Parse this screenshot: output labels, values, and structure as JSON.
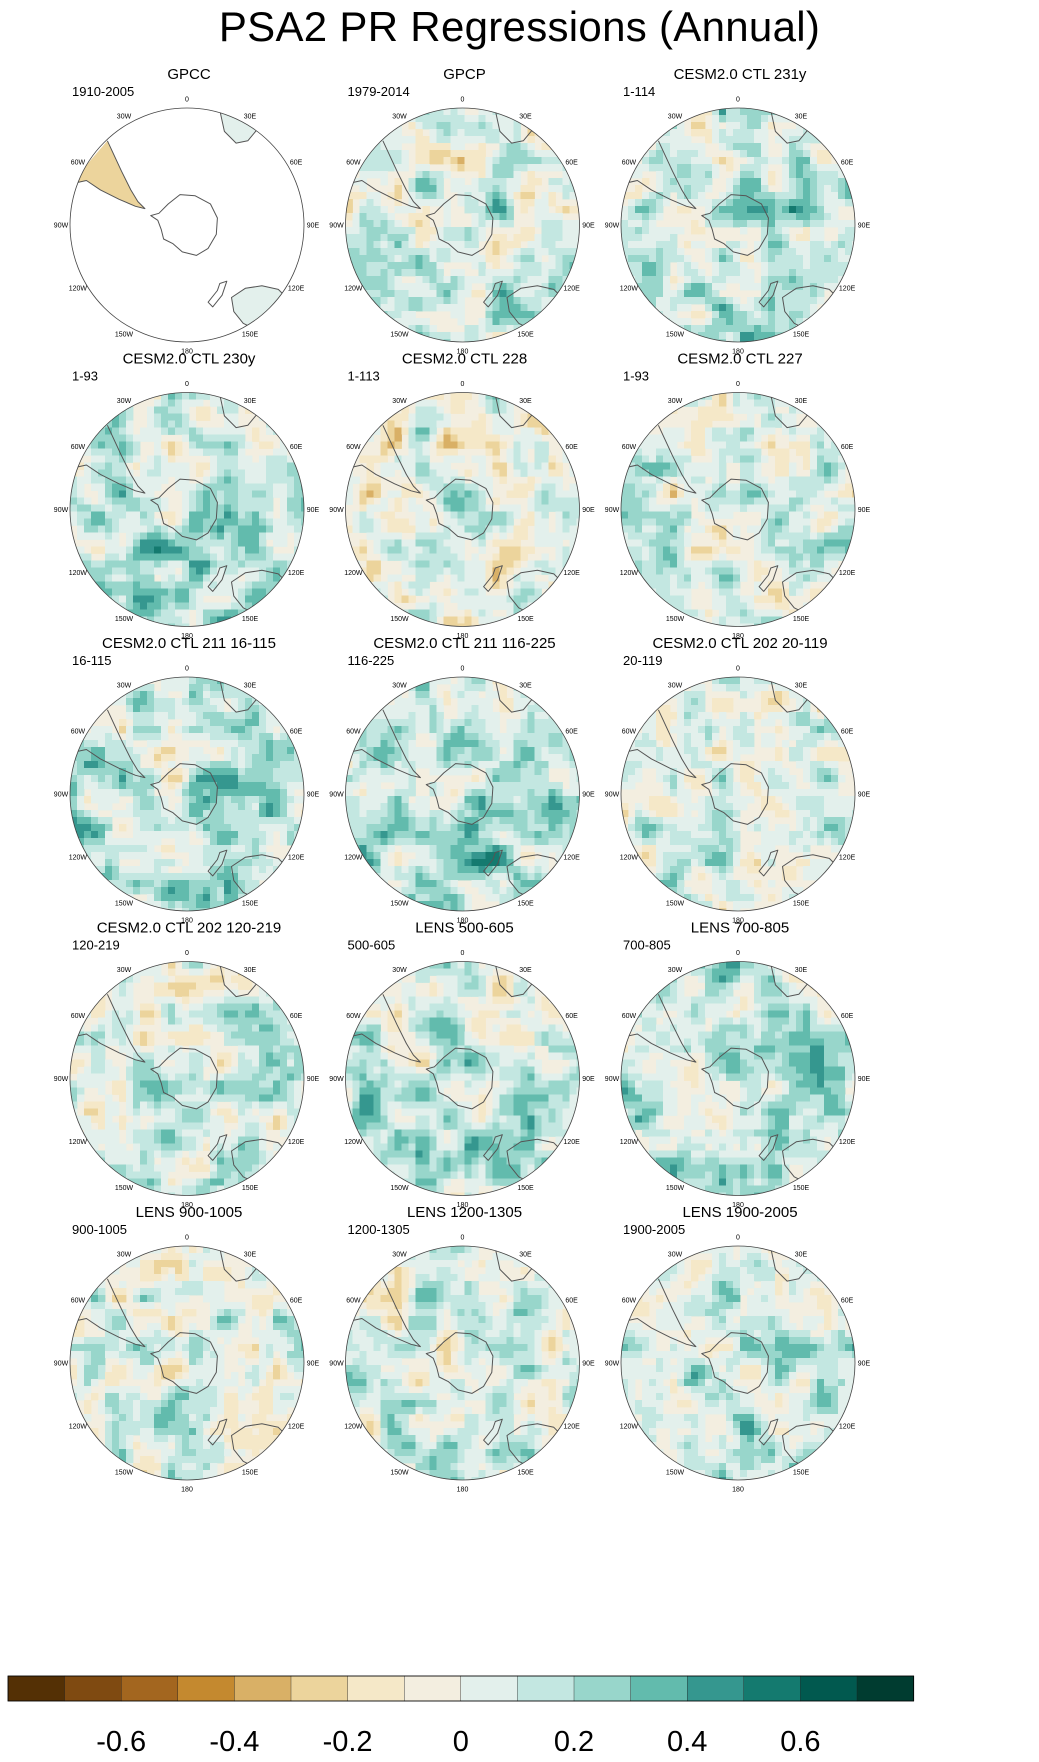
{
  "title": "PSA2 PR Regressions (Annual)",
  "colors": {
    "ocean": "#f3eee0",
    "coast": "#555555",
    "border": "#444444"
  },
  "longitude_labels": [
    "0",
    "30E",
    "60E",
    "90E",
    "120E",
    "150E",
    "180",
    "150W",
    "120W",
    "90W",
    "60W",
    "30W"
  ],
  "panels": [
    {
      "title": "GPCC",
      "period": "1910-2005",
      "masked": true
    },
    {
      "title": "GPCP",
      "period": "1979-2014"
    },
    {
      "title": "CESM2.0 CTL 231y",
      "period": "1-114"
    },
    {
      "title": "CESM2.0 CTL 230y",
      "period": "1-93"
    },
    {
      "title": "CESM2.0 CTL 228",
      "period": "1-113"
    },
    {
      "title": "CESM2.0 CTL 227",
      "period": "1-93"
    },
    {
      "title": "CESM2.0 CTL 211 16-115",
      "period": "16-115"
    },
    {
      "title": "CESM2.0 CTL 211 116-225",
      "period": "116-225"
    },
    {
      "title": "CESM2.0 CTL 202 20-119",
      "period": "20-119"
    },
    {
      "title": "CESM2.0 CTL 202 120-219",
      "period": "120-219"
    },
    {
      "title": "LENS 500-605",
      "period": "500-605"
    },
    {
      "title": "LENS 700-805",
      "period": "700-805"
    },
    {
      "title": "LENS 900-1005",
      "period": "900-1005"
    },
    {
      "title": "LENS 1200-1305",
      "period": "1200-1305"
    },
    {
      "title": "LENS 1900-2005",
      "period": "1900-2005"
    }
  ],
  "colorbar": {
    "colors": [
      "#543005",
      "#7f4a11",
      "#a3661f",
      "#c4892f",
      "#d9b066",
      "#ecd49c",
      "#f5e8c8",
      "#f3eee0",
      "#e3f0ec",
      "#c3e7e1",
      "#98d6cb",
      "#62bbad",
      "#35978f",
      "#147a6f",
      "#01594f",
      "#003c30"
    ],
    "labels": [
      "-0.6",
      "-0.4",
      "-0.2",
      "0",
      "0.2",
      "0.4",
      "0.6"
    ]
  }
}
